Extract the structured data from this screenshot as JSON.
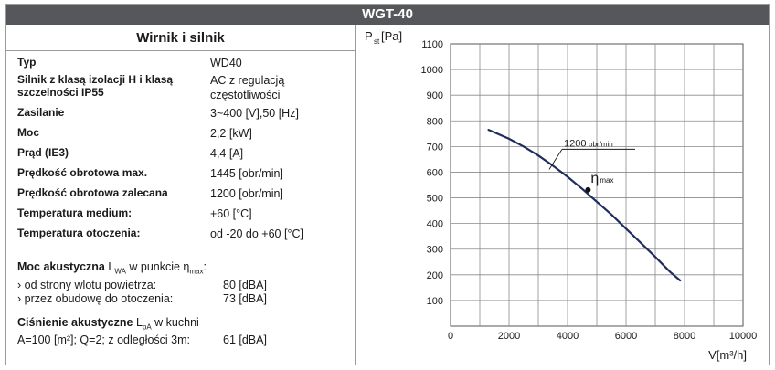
{
  "header": {
    "title": "WGT-40"
  },
  "specs": {
    "title": "Wirnik i silnik",
    "rows": [
      {
        "label": "Typ",
        "value": "WD40"
      },
      {
        "label": "Silnik z klasą izolacji H i klasą szczelności IP55",
        "value": "AC z regulacją częstotliwości"
      },
      {
        "label": "Zasilanie",
        "value": "3~400 [V],50 [Hz]"
      },
      {
        "label": "Moc",
        "value": "2,2 [kW]"
      },
      {
        "label": "Prąd (IE3)",
        "value": "4,4 [A]"
      },
      {
        "label": "Prędkość obrotowa max.",
        "value": "1445 [obr/min]"
      },
      {
        "label": "Prędkość obrotowa zalecana",
        "value": "1200 [obr/min]"
      },
      {
        "label": "Temperatura medium:",
        "value": "+60 [°C]"
      },
      {
        "label": "Temperatura otoczenia:",
        "value": "od -20 do +60 [°C]"
      }
    ]
  },
  "acoustic_power": {
    "title_bold": "Moc akustyczna",
    "title_symbol": "L",
    "title_symbol_sub": "WA",
    "title_rest": " w punkcie η",
    "title_rest_sub": "max",
    "title_end": ":",
    "rows": [
      {
        "label": "› od strony wlotu powietrza:",
        "value": "80 [dBA]"
      },
      {
        "label": "› przez obudowę do otoczenia:",
        "value": "73 [dBA]"
      }
    ]
  },
  "acoustic_pressure": {
    "title_bold": "Ciśnienie akustyczne",
    "title_symbol": "L",
    "title_symbol_sub": "pA",
    "title_rest": " w kuchni",
    "condition": "A=100 [m²]; Q=2; z odległości 3m:",
    "value": "61 [dBA]"
  },
  "chart_data": {
    "type": "line",
    "ylabel": "P",
    "ylabel_sub": "st",
    "ylabel_unit": "[Pa]",
    "xlabel": "V[m³/h]",
    "xlim": [
      0,
      10000
    ],
    "ylim": [
      0,
      1100
    ],
    "x_ticks": [
      0,
      2000,
      4000,
      6000,
      8000,
      10000
    ],
    "y_ticks": [
      100,
      200,
      300,
      400,
      500,
      600,
      700,
      800,
      900,
      1000,
      1100
    ],
    "grid": true,
    "series": [
      {
        "name": "1200 obr/min",
        "color": "#1f2d5c",
        "x": [
          1300,
          2000,
          2500,
          3000,
          3500,
          4000,
          4500,
          5000,
          5500,
          6000,
          6500,
          7000,
          7500,
          7850
        ],
        "y": [
          765,
          730,
          700,
          665,
          625,
          582,
          535,
          485,
          435,
          380,
          325,
          270,
          212,
          178
        ]
      }
    ],
    "annotations": [
      {
        "text": "1200",
        "text_sub": "obr/min",
        "x": 3750,
        "y": 700
      },
      {
        "text": "η",
        "text_sub": "max",
        "marker": {
          "x": 4700,
          "y": 531
        }
      }
    ]
  }
}
